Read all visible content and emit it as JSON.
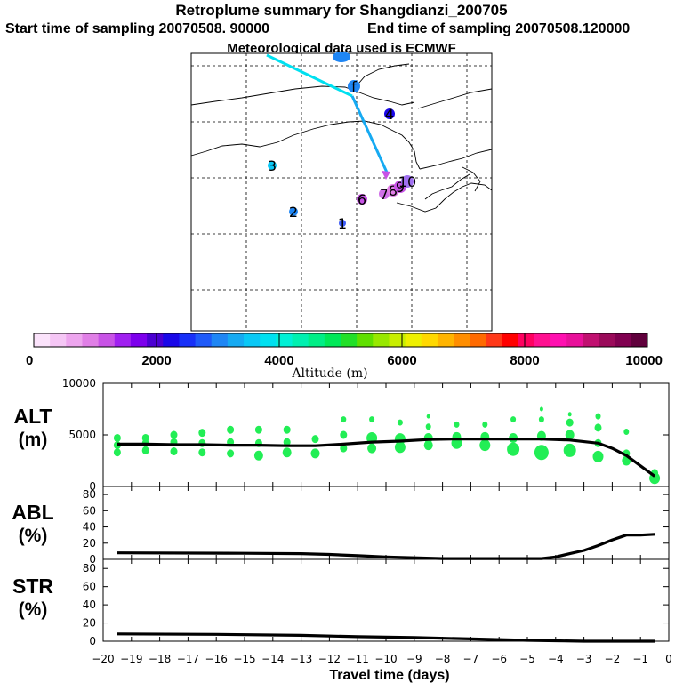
{
  "header": {
    "title": "Retroplume summary for Shangdianzi_200705",
    "start": "Start time of sampling 20070508. 90000",
    "end": "End time of sampling 20070508.120000",
    "met": "Meteorological data used is ECMWF"
  },
  "colorbar": {
    "label": "Altitude (m)",
    "ticks": [
      "0",
      "2000",
      "4000",
      "6000",
      "8000",
      "10000"
    ],
    "min": 0,
    "max": 10000,
    "colors": [
      "#fbe3fb",
      "#f5c6f5",
      "#eda5ee",
      "#e07fe6",
      "#c853e6",
      "#a020f0",
      "#7d00ec",
      "#4b00d2",
      "#1a08e8",
      "#1830f8",
      "#1f5af8",
      "#1f86f4",
      "#16aaf2",
      "#0ac8f6",
      "#00e0f0",
      "#00f0d6",
      "#00f0b0",
      "#00ee86",
      "#00e858",
      "#22e028",
      "#60e000",
      "#98e800",
      "#c8ee00",
      "#eef000",
      "#ffd800",
      "#ffb400",
      "#ff8e00",
      "#ff6a00",
      "#ff3818",
      "#ff0000",
      "#ff0060",
      "#ff1090",
      "#ff10b0",
      "#e8109a",
      "#c01070",
      "#9a0a5a",
      "#800050",
      "#60003c"
    ]
  },
  "map": {
    "markers": [
      {
        "label": "1",
        "color": "#3d5cf8"
      },
      {
        "label": "2",
        "color": "#1f86f4"
      },
      {
        "label": "3",
        "color": "#0ac8f6"
      },
      {
        "label": "4",
        "color": "#1a08e8"
      },
      {
        "label": "6",
        "color": "#c853e6"
      },
      {
        "label": "7",
        "color": "#d070e8"
      },
      {
        "label": "8",
        "color": "#e07fe6"
      },
      {
        "label": "9",
        "color": "#c853e6"
      },
      {
        "label": "10",
        "color": "#a070f0"
      },
      {
        "label": "f",
        "color": "#1f86f4"
      }
    ]
  },
  "axes": {
    "xlabel": "Travel time (days)",
    "xticks": [
      "−20",
      "−19",
      "−18",
      "−17",
      "−16",
      "−15",
      "−14",
      "−13",
      "−12",
      "−11",
      "−10",
      "−9",
      "−8",
      "−7",
      "−6",
      "−5",
      "−4",
      "−3",
      "−2",
      "−1",
      "0"
    ],
    "alt_label": [
      "ALT",
      "(m)"
    ],
    "abl_label": [
      "ABL",
      "(%)"
    ],
    "str_label": [
      "STR",
      "(%)"
    ],
    "alt_ticks": [
      "0",
      "5000",
      "10000"
    ],
    "pct_ticks": [
      "0",
      "20",
      "40",
      "60",
      "80"
    ]
  },
  "chart_data": [
    {
      "type": "line",
      "title": "ALT",
      "ylabel": "ALT (m)",
      "xlabel": "Travel time (days)",
      "xlim": [
        -20,
        0
      ],
      "ylim": [
        0,
        10000
      ],
      "series": [
        {
          "name": "mean altitude",
          "x": [
            -19.5,
            -18.5,
            -17.5,
            -16.5,
            -15.5,
            -14.5,
            -13.5,
            -12.5,
            -11.5,
            -10.5,
            -9.5,
            -8.5,
            -7.5,
            -6.5,
            -5.5,
            -4.5,
            -3.5,
            -2.5,
            -2.0,
            -1.5,
            -1.0,
            -0.5
          ],
          "y": [
            4100,
            4100,
            4050,
            4050,
            4000,
            4000,
            3950,
            3950,
            4100,
            4300,
            4400,
            4550,
            4600,
            4600,
            4600,
            4600,
            4500,
            4200,
            3700,
            3000,
            2000,
            1000
          ]
        }
      ],
      "scatter": [
        {
          "x": -19.5,
          "y": 3300,
          "s": 3
        },
        {
          "x": -19.5,
          "y": 4000,
          "s": 3
        },
        {
          "x": -19.5,
          "y": 4700,
          "s": 3
        },
        {
          "x": -18.5,
          "y": 3500,
          "s": 3
        },
        {
          "x": -18.5,
          "y": 4200,
          "s": 3
        },
        {
          "x": -18.5,
          "y": 4700,
          "s": 3
        },
        {
          "x": -17.5,
          "y": 3400,
          "s": 3
        },
        {
          "x": -17.5,
          "y": 4300,
          "s": 3
        },
        {
          "x": -17.5,
          "y": 5000,
          "s": 3
        },
        {
          "x": -16.5,
          "y": 3300,
          "s": 3
        },
        {
          "x": -16.5,
          "y": 4200,
          "s": 3
        },
        {
          "x": -16.5,
          "y": 5200,
          "s": 3
        },
        {
          "x": -15.5,
          "y": 3200,
          "s": 3
        },
        {
          "x": -15.5,
          "y": 4300,
          "s": 3
        },
        {
          "x": -15.5,
          "y": 5500,
          "s": 3
        },
        {
          "x": -14.5,
          "y": 3000,
          "s": 4
        },
        {
          "x": -14.5,
          "y": 4200,
          "s": 3
        },
        {
          "x": -14.5,
          "y": 5500,
          "s": 3
        },
        {
          "x": -13.5,
          "y": 3300,
          "s": 4
        },
        {
          "x": -13.5,
          "y": 4300,
          "s": 3
        },
        {
          "x": -13.5,
          "y": 5500,
          "s": 3
        },
        {
          "x": -12.5,
          "y": 3200,
          "s": 4
        },
        {
          "x": -12.5,
          "y": 4600,
          "s": 3
        },
        {
          "x": -11.5,
          "y": 3700,
          "s": 3
        },
        {
          "x": -11.5,
          "y": 5000,
          "s": 3
        },
        {
          "x": -11.5,
          "y": 6500,
          "s": 2
        },
        {
          "x": -10.5,
          "y": 3700,
          "s": 4
        },
        {
          "x": -10.5,
          "y": 4700,
          "s": 5
        },
        {
          "x": -10.5,
          "y": 6500,
          "s": 2
        },
        {
          "x": -9.5,
          "y": 3800,
          "s": 5
        },
        {
          "x": -9.5,
          "y": 4600,
          "s": 5
        },
        {
          "x": -9.5,
          "y": 6200,
          "s": 2
        },
        {
          "x": -8.5,
          "y": 4000,
          "s": 4
        },
        {
          "x": -8.5,
          "y": 4700,
          "s": 4
        },
        {
          "x": -8.5,
          "y": 5800,
          "s": 2
        },
        {
          "x": -8.5,
          "y": 6800,
          "s": 1
        },
        {
          "x": -7.5,
          "y": 4200,
          "s": 5
        },
        {
          "x": -7.5,
          "y": 4800,
          "s": 4
        },
        {
          "x": -7.5,
          "y": 6000,
          "s": 2
        },
        {
          "x": -6.5,
          "y": 4000,
          "s": 5
        },
        {
          "x": -6.5,
          "y": 4800,
          "s": 4
        },
        {
          "x": -6.5,
          "y": 6000,
          "s": 2
        },
        {
          "x": -5.5,
          "y": 3600,
          "s": 6
        },
        {
          "x": -5.5,
          "y": 4700,
          "s": 4
        },
        {
          "x": -5.5,
          "y": 6500,
          "s": 2
        },
        {
          "x": -4.5,
          "y": 3300,
          "s": 7
        },
        {
          "x": -4.5,
          "y": 4900,
          "s": 4
        },
        {
          "x": -4.5,
          "y": 6500,
          "s": 2
        },
        {
          "x": -4.5,
          "y": 7500,
          "s": 1
        },
        {
          "x": -3.5,
          "y": 3500,
          "s": 6
        },
        {
          "x": -3.5,
          "y": 5000,
          "s": 4
        },
        {
          "x": -3.5,
          "y": 6200,
          "s": 3
        },
        {
          "x": -3.5,
          "y": 7000,
          "s": 1
        },
        {
          "x": -2.5,
          "y": 2900,
          "s": 5
        },
        {
          "x": -2.5,
          "y": 4200,
          "s": 3
        },
        {
          "x": -2.5,
          "y": 5700,
          "s": 3
        },
        {
          "x": -2.5,
          "y": 6800,
          "s": 2
        },
        {
          "x": -1.5,
          "y": 2500,
          "s": 4
        },
        {
          "x": -1.5,
          "y": 3200,
          "s": 3
        },
        {
          "x": -1.5,
          "y": 5300,
          "s": 2
        },
        {
          "x": -0.5,
          "y": 800,
          "s": 5
        },
        {
          "x": -0.5,
          "y": 1300,
          "s": 3
        }
      ]
    },
    {
      "type": "line",
      "title": "ABL",
      "ylabel": "ABL (%)",
      "xlabel": "Travel time (days)",
      "xlim": [
        -20,
        0
      ],
      "ylim": [
        0,
        90
      ],
      "series": [
        {
          "name": "ABL fraction",
          "x": [
            -19.5,
            -15,
            -13,
            -12,
            -11,
            -10,
            -9,
            -8,
            -7,
            -6,
            -5,
            -4.5,
            -4,
            -3.5,
            -3,
            -2.5,
            -2,
            -1.5,
            -1,
            -0.5
          ],
          "y": [
            8,
            7.5,
            7,
            6,
            4.5,
            3,
            2,
            1,
            1,
            1,
            1,
            1,
            3,
            7,
            11,
            17,
            24,
            30,
            30,
            31
          ]
        }
      ]
    },
    {
      "type": "line",
      "title": "STR",
      "ylabel": "STR (%)",
      "xlabel": "Travel time (days)",
      "xlim": [
        -20,
        0
      ],
      "ylim": [
        0,
        90
      ],
      "series": [
        {
          "name": "STR fraction",
          "x": [
            -19.5,
            -16,
            -13,
            -11,
            -9,
            -7,
            -5,
            -4,
            -3,
            -2,
            -1,
            -0.5
          ],
          "y": [
            8,
            7.5,
            6.5,
            5,
            4,
            2.5,
            1,
            0.5,
            0,
            0,
            0,
            0
          ]
        }
      ]
    }
  ]
}
